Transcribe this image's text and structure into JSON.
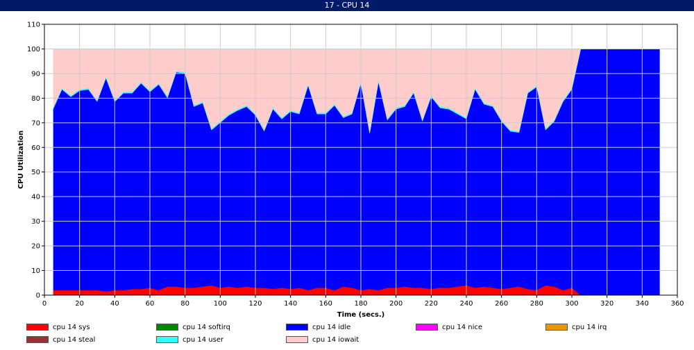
{
  "window": {
    "title": "17 - CPU 14"
  },
  "chart_data": {
    "type": "area",
    "title": "",
    "xlabel": "Time (secs.)",
    "ylabel": "CPU Utilization",
    "xlim": [
      0,
      360
    ],
    "ylim": [
      0,
      110
    ],
    "x_ticks": [
      0,
      20,
      40,
      60,
      80,
      100,
      120,
      140,
      160,
      180,
      200,
      220,
      240,
      260,
      280,
      300,
      320,
      340,
      360
    ],
    "y_ticks": [
      0,
      10,
      20,
      30,
      40,
      50,
      60,
      70,
      80,
      90,
      100,
      110
    ],
    "grid": true,
    "stacked": true,
    "x": [
      5,
      10,
      15,
      20,
      25,
      30,
      35,
      40,
      45,
      50,
      55,
      60,
      65,
      70,
      75,
      80,
      85,
      90,
      95,
      100,
      105,
      110,
      115,
      120,
      125,
      130,
      135,
      140,
      145,
      150,
      155,
      160,
      165,
      170,
      175,
      180,
      185,
      190,
      195,
      200,
      205,
      210,
      215,
      220,
      225,
      230,
      235,
      240,
      245,
      250,
      255,
      260,
      265,
      270,
      275,
      280,
      285,
      290,
      295,
      300,
      305,
      310,
      315,
      320,
      325,
      330,
      335,
      340,
      345,
      350
    ],
    "series": [
      {
        "name": "cpu 14 sys",
        "color": "#ff0000",
        "values": [
          2,
          2,
          2,
          2,
          2,
          2,
          1.5,
          2,
          2,
          2.5,
          2.5,
          3,
          2,
          3.5,
          3.5,
          3,
          3,
          3.5,
          4,
          3,
          3.5,
          3,
          3.5,
          3,
          3,
          2.5,
          3,
          2.5,
          3,
          2,
          3,
          3,
          2,
          3.5,
          3,
          2,
          2.5,
          2,
          3,
          3,
          3.5,
          3,
          3,
          2.5,
          3,
          3,
          3.5,
          4,
          3,
          3.5,
          3,
          2.5,
          3,
          3.5,
          2.5,
          2,
          4,
          3.5,
          2,
          3,
          0,
          0,
          0,
          0,
          0,
          0,
          0,
          0,
          0,
          0
        ]
      },
      {
        "name": "cpu 14 softirq",
        "color": "#008800",
        "values": [
          0,
          0,
          0,
          0,
          0,
          0,
          0,
          0,
          0,
          0,
          0,
          0,
          0,
          0,
          0,
          0,
          0,
          0,
          0,
          0,
          0,
          0,
          0,
          0,
          0,
          0,
          0,
          0,
          0,
          0,
          0,
          0,
          0,
          0,
          0,
          0,
          0,
          0,
          0,
          0,
          0,
          0,
          0,
          0,
          0,
          0,
          0,
          0,
          0,
          0,
          0,
          0,
          0,
          0,
          0,
          0,
          0,
          0,
          0,
          0,
          0,
          0,
          0,
          0,
          0,
          0,
          0,
          0,
          0,
          0
        ]
      },
      {
        "name": "cpu 14 idle",
        "color": "#0000ff",
        "values": [
          73.5,
          81.5,
          78.5,
          81,
          81.5,
          76.5,
          86.5,
          76.5,
          80,
          79.5,
          83.5,
          79.5,
          83.5,
          76.5,
          87,
          87,
          73.5,
          74.5,
          63,
          67,
          69.5,
          72,
          73,
          70,
          63.5,
          73,
          68.5,
          72,
          70.5,
          83,
          70.5,
          70.5,
          75,
          68.5,
          70.5,
          84,
          63,
          84.5,
          68,
          72.5,
          73,
          79,
          67.5,
          78,
          73,
          72.5,
          70,
          67.5,
          80.5,
          74,
          73.5,
          68,
          63.5,
          62.5,
          79.5,
          82.5,
          63,
          67,
          76.5,
          80.5,
          100,
          100,
          100,
          100,
          100,
          100,
          100,
          100,
          100,
          100
        ]
      },
      {
        "name": "cpu 14 nice",
        "color": "#ff00ff",
        "values": [
          0,
          0,
          0,
          0,
          0,
          0,
          0,
          0,
          0,
          0,
          0,
          0,
          0,
          0,
          0,
          0,
          0,
          0,
          0,
          0,
          0,
          0,
          0,
          0,
          0,
          0,
          0,
          0,
          0,
          0,
          0,
          0,
          0,
          0,
          0,
          0,
          0,
          0,
          0,
          0,
          0,
          0,
          0,
          0,
          0,
          0,
          0,
          0,
          0,
          0,
          0,
          0,
          0,
          0,
          0,
          0,
          0,
          0,
          0,
          0,
          0,
          0,
          0,
          0,
          0,
          0,
          0,
          0,
          0,
          0
        ]
      },
      {
        "name": "cpu 14 irq",
        "color": "#e69900",
        "values": [
          0,
          0,
          0,
          0,
          0,
          0,
          0,
          0,
          0,
          0,
          0,
          0,
          0,
          0,
          0,
          0,
          0,
          0,
          0,
          0,
          0,
          0,
          0,
          0,
          0,
          0,
          0,
          0,
          0,
          0,
          0,
          0,
          0,
          0,
          0,
          0,
          0,
          0,
          0,
          0,
          0,
          0,
          0,
          0,
          0,
          0,
          0,
          0,
          0,
          0,
          0,
          0,
          0,
          0,
          0,
          0,
          0,
          0,
          0,
          0,
          0,
          0,
          0,
          0,
          0,
          0,
          0,
          0,
          0,
          0
        ]
      },
      {
        "name": "cpu 14 steal",
        "color": "#993333",
        "values": [
          0,
          0,
          0,
          0,
          0,
          0,
          0,
          0,
          0,
          0,
          0,
          0,
          0,
          0,
          0,
          0,
          0,
          0,
          0,
          0,
          0,
          0,
          0,
          0,
          0,
          0,
          0,
          0,
          0,
          0,
          0,
          0,
          0,
          0,
          0,
          0,
          0,
          0,
          0,
          0,
          0,
          0,
          0,
          0,
          0,
          0,
          0,
          0,
          0,
          0,
          0,
          0,
          0,
          0,
          0,
          0,
          0,
          0,
          0,
          0,
          0,
          0,
          0,
          0,
          0,
          0,
          0,
          0,
          0,
          0
        ]
      },
      {
        "name": "cpu 14 user",
        "color": "#33ffff",
        "values": [
          0.5,
          0.5,
          0.5,
          0.5,
          0.5,
          0.5,
          0.5,
          0.5,
          0.5,
          0.5,
          0.5,
          0.5,
          0.5,
          0.5,
          0.5,
          0.5,
          0.5,
          0.5,
          0.5,
          0.5,
          0.5,
          0.5,
          0.5,
          0.5,
          0.5,
          0.5,
          0.5,
          0.5,
          0.5,
          0.5,
          0.5,
          0.5,
          0.5,
          0.5,
          0.5,
          0.5,
          0.5,
          0.5,
          0.5,
          0.5,
          0.5,
          0.5,
          0.5,
          0.5,
          0.5,
          0.5,
          0.5,
          0.5,
          0.5,
          0.5,
          0.5,
          0.5,
          0.5,
          0.5,
          0.5,
          0.5,
          0.5,
          0.5,
          0.5,
          0.5,
          0,
          0,
          0,
          0,
          0,
          0,
          0,
          0,
          0,
          0
        ]
      },
      {
        "name": "cpu 14 iowait",
        "color": "#ffcccc",
        "values": [
          24,
          16,
          19,
          16.5,
          16,
          21,
          11.5,
          21,
          17.5,
          17.5,
          13.5,
          17,
          14,
          19.5,
          9,
          9.5,
          23,
          21.5,
          32.5,
          29.5,
          26.5,
          24.5,
          23,
          26.5,
          33,
          24,
          28,
          25,
          26,
          14.5,
          26,
          26,
          22.5,
          27.5,
          26,
          13.5,
          34,
          13,
          28.5,
          24,
          23,
          17.5,
          29,
          19,
          23.5,
          24,
          26,
          28,
          16,
          22,
          23,
          29,
          33,
          33.5,
          17.5,
          15,
          32.5,
          29,
          21,
          16,
          0,
          0,
          0,
          0,
          0,
          0,
          0,
          0,
          0,
          0
        ]
      }
    ],
    "legend": {
      "placement": "bottom"
    }
  }
}
